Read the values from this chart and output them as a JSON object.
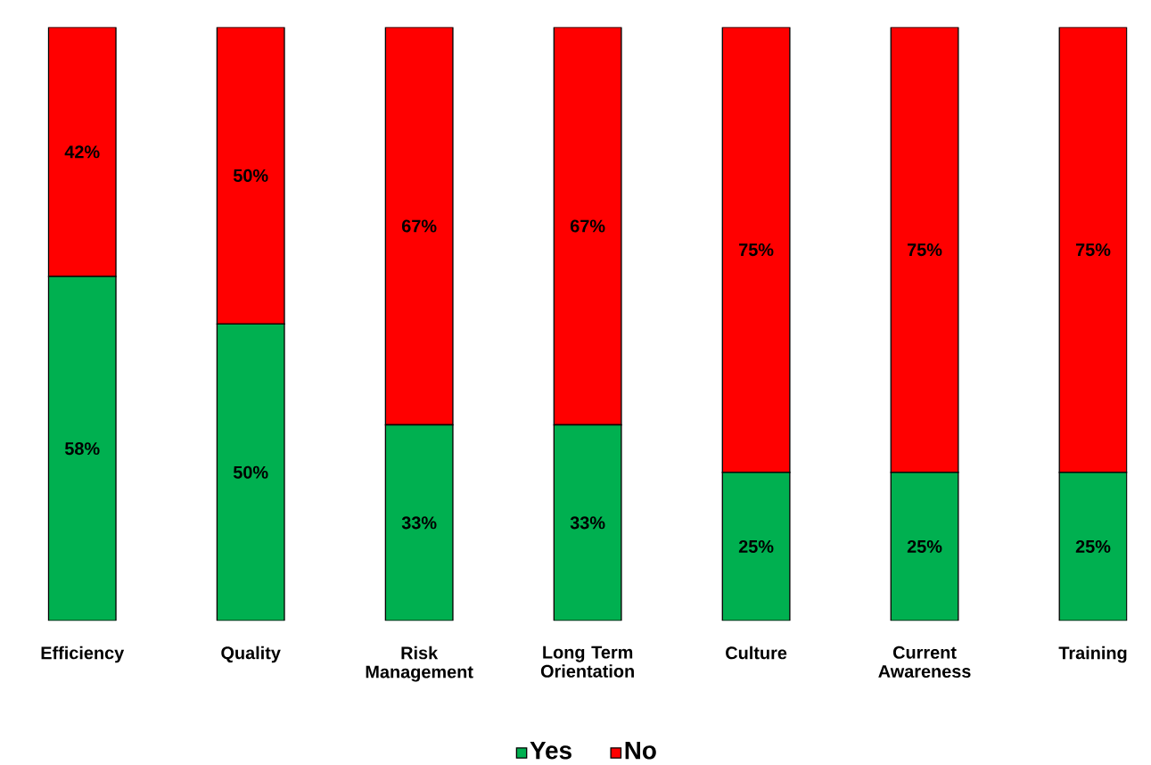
{
  "chart_data": {
    "type": "bar",
    "stacked": true,
    "legend": "bottom",
    "categories": [
      "Efficiency",
      "Quality",
      "Risk Management",
      "Long Term Orientation",
      "Culture",
      "Current Awareness",
      "Training"
    ],
    "series": [
      {
        "name": "Yes",
        "color": "#00b050",
        "values": [
          58,
          50,
          33,
          33,
          25,
          25,
          25
        ],
        "value_labels": [
          "58%",
          "50%",
          "33%",
          "33%",
          "25%",
          "25%",
          "25%"
        ]
      },
      {
        "name": "No",
        "color": "#ff0000",
        "values": [
          42,
          50,
          67,
          67,
          75,
          75,
          75
        ],
        "value_labels": [
          "42%",
          "50%",
          "67%",
          "67%",
          "75%",
          "75%",
          "75%"
        ]
      }
    ]
  }
}
